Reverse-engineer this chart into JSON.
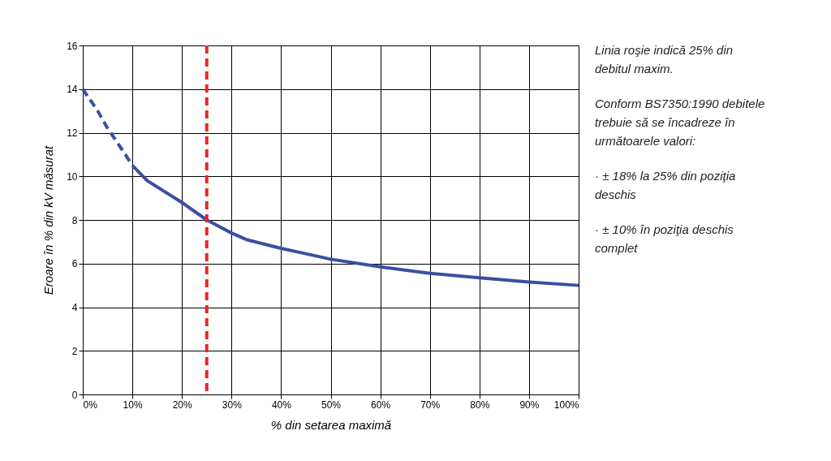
{
  "chart_data": {
    "type": "line",
    "xlabel": "% din setarea maximă",
    "ylabel": "Eroare în % din kV măsurat",
    "xlim": [
      0,
      100
    ],
    "ylim": [
      0,
      16
    ],
    "xticks": [
      {
        "value": 0,
        "label": "0%"
      },
      {
        "value": 10,
        "label": "10%"
      },
      {
        "value": 20,
        "label": "20%"
      },
      {
        "value": 30,
        "label": "30%"
      },
      {
        "value": 40,
        "label": "40%"
      },
      {
        "value": 50,
        "label": "50%"
      },
      {
        "value": 60,
        "label": "60%"
      },
      {
        "value": 70,
        "label": "70%"
      },
      {
        "value": 80,
        "label": "80%"
      },
      {
        "value": 90,
        "label": "90%"
      },
      {
        "value": 100,
        "label": "100%"
      }
    ],
    "yticks": [
      0,
      2,
      4,
      6,
      8,
      10,
      12,
      14,
      16
    ],
    "grid": true,
    "marker": "none",
    "series": [
      {
        "color": "#3a4fa0",
        "line_style": "dashed",
        "x": [
          0,
          3,
          5,
          8,
          10
        ],
        "values": [
          14,
          13,
          12.2,
          11.2,
          10.5
        ]
      },
      {
        "color": "#3a4fa0",
        "line_style": "solid",
        "x": [
          10,
          13,
          20,
          25,
          30,
          33,
          40,
          45,
          50,
          60,
          70,
          80,
          90,
          100
        ],
        "values": [
          10.5,
          9.8,
          8.8,
          8.0,
          7.4,
          7.1,
          6.7,
          6.45,
          6.2,
          5.85,
          5.55,
          5.35,
          5.15,
          5.0
        ]
      }
    ],
    "ref_lines": [
      {
        "axis": "x",
        "value": 25,
        "label": null,
        "color": "#e8262a",
        "line_style": "dashed"
      }
    ],
    "annotations": [
      "Linia roşie indică 25% din debitul maxim.",
      "Conform BS7350:1990 debitele trebuie să se încadreze în următoarele valori:",
      "· ± 18% la 25% din poziţia deschis",
      "· ± 10% în poziţia deschis complet"
    ]
  }
}
